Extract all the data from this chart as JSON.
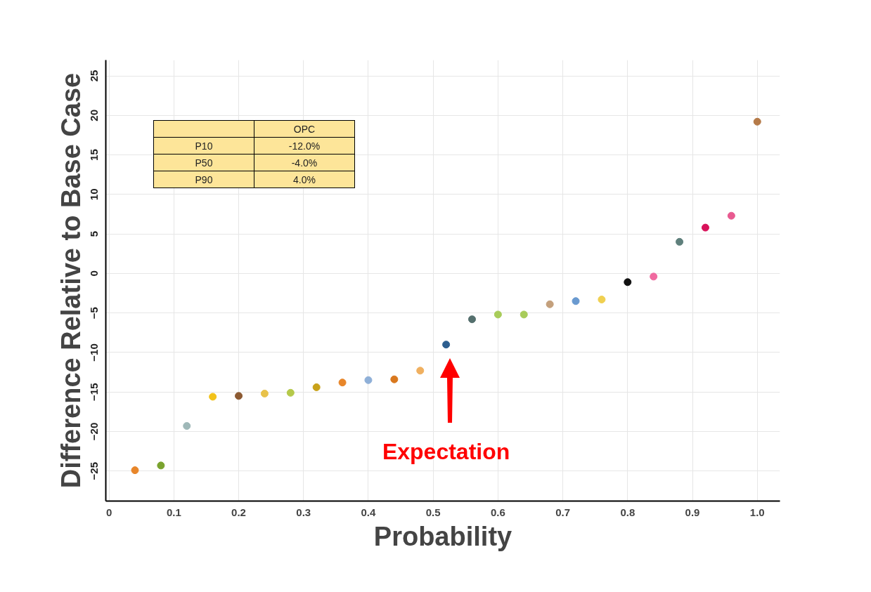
{
  "chart_data": {
    "type": "scatter",
    "xlabel": "Probability",
    "ylabel": "Difference Relative to Base Case",
    "x": [
      0.04,
      0.08,
      0.12,
      0.16,
      0.2,
      0.24,
      0.28,
      0.32,
      0.36,
      0.4,
      0.44,
      0.48,
      0.52,
      0.56,
      0.6,
      0.64,
      0.68,
      0.72,
      0.76,
      0.8,
      0.84,
      0.88,
      0.92,
      0.96,
      1.0
    ],
    "values": [
      -24.9,
      -24.3,
      -19.3,
      -15.6,
      -15.5,
      -15.2,
      -15.1,
      -14.4,
      -13.8,
      -13.5,
      -13.4,
      -12.3,
      -9.0,
      -5.8,
      -5.2,
      -5.2,
      -3.9,
      -3.5,
      -3.3,
      -1.1,
      -0.4,
      4.0,
      5.8,
      7.3,
      19.2
    ],
    "colors": [
      "#e8862a",
      "#7aa32e",
      "#9fb8b8",
      "#f2c21a",
      "#8c5a32",
      "#e8c24a",
      "#b5c94a",
      "#c9a21a",
      "#e8862a",
      "#8fb0d8",
      "#d9781e",
      "#f0b060",
      "#2d5e8f",
      "#55706e",
      "#a8cc5a",
      "#a8cc5a",
      "#c4a07c",
      "#6a9ad0",
      "#f0d050",
      "#111111",
      "#f06aa0",
      "#5f807c",
      "#d8125a",
      "#e85a90",
      "#b57a48"
    ],
    "xlim": [
      -0.005,
      1.035
    ],
    "ylim": [
      -28.8,
      27.0
    ],
    "xticks": [
      0,
      0.1,
      0.2,
      0.3,
      0.4,
      0.5,
      0.6,
      0.7,
      0.8,
      0.9,
      {
        "value": 1.0,
        "label": "1.0"
      }
    ],
    "yticks": [
      -25,
      -20,
      -15,
      -10,
      -5,
      0,
      5,
      10,
      15,
      20,
      25
    ],
    "grid": true,
    "marker": "circle",
    "annotations": [
      "OPC",
      "P10",
      "-12.0%",
      "P50",
      "-4.0%",
      "P90",
      "4.0%",
      "Expectation"
    ]
  }
}
